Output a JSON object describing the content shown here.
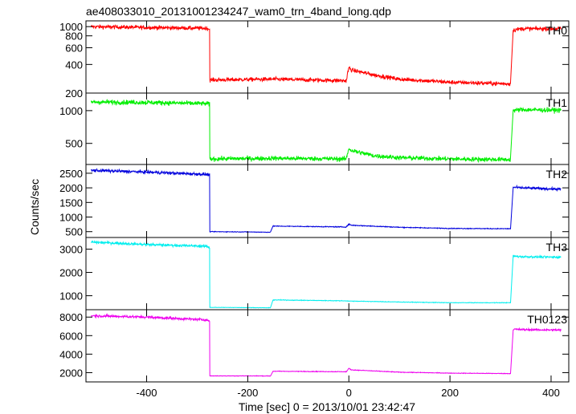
{
  "chart_data": {
    "type": "line",
    "title": "ae408033010_20131001234247_wam0_trn_4band_long.qdp",
    "xlabel": "Time [sec] 0 = 2013/10/01 23:42:47",
    "ylabel": "Counts/sec",
    "xlim": [
      -520,
      435
    ],
    "xticks": [
      -400,
      -200,
      0,
      200,
      400
    ],
    "panels": [
      {
        "name": "TH0",
        "color": "#ff0000",
        "scale": "log",
        "ylim": [
          200,
          1150
        ],
        "yticks": [
          200,
          400,
          600,
          800,
          1000
        ],
        "segments": [
          {
            "x": [
              -510,
              -400,
              -280,
              -275
            ],
            "y": [
              1000,
              980,
              960,
              940
            ]
          },
          {
            "x": [
              -275,
              -150,
              -5,
              0,
              5,
              50,
              100,
              200,
              320
            ],
            "y": [
              275,
              280,
              270,
              370,
              350,
              310,
              280,
              260,
              250
            ]
          },
          {
            "x": [
              325,
              340,
              420
            ],
            "y": [
              920,
              950,
              950
            ]
          }
        ],
        "noise": 0.035
      },
      {
        "name": "TH1",
        "color": "#00ee00",
        "scale": "log",
        "ylim": [
          320,
          1450
        ],
        "yticks": [
          500,
          1000
        ],
        "segments": [
          {
            "x": [
              -510,
              -400,
              -280,
              -275
            ],
            "y": [
              1200,
              1190,
              1160,
              1140
            ]
          },
          {
            "x": [
              -275,
              -150,
              -5,
              0,
              5,
              50,
              100,
              200,
              320
            ],
            "y": [
              360,
              365,
              360,
              450,
              430,
              385,
              370,
              360,
              355
            ]
          },
          {
            "x": [
              325,
              340,
              420
            ],
            "y": [
              1000,
              1020,
              1010
            ]
          }
        ],
        "noise": 0.035
      },
      {
        "name": "TH2",
        "color": "#0000dd",
        "scale": "linear",
        "ylim": [
          300,
          2800
        ],
        "yticks": [
          500,
          1000,
          1500,
          2000,
          2500
        ],
        "segments": [
          {
            "x": [
              -510,
              -400,
              -280,
              -275
            ],
            "y": [
              2600,
              2540,
              2460,
              2420
            ]
          },
          {
            "x": [
              -275,
              -200,
              -155
            ],
            "y": [
              500,
              490,
              480
            ]
          },
          {
            "x": [
              -150,
              -5,
              0,
              5,
              100,
              200,
              320
            ],
            "y": [
              690,
              660,
              760,
              720,
              650,
              610,
              600
            ]
          },
          {
            "x": [
              325,
              340,
              420
            ],
            "y": [
              2020,
              2000,
              1950
            ]
          }
        ],
        "noise": 0.015
      },
      {
        "name": "TH3",
        "color": "#00eeee",
        "scale": "linear",
        "ylim": [
          400,
          3500
        ],
        "yticks": [
          1000,
          2000,
          3000
        ],
        "segments": [
          {
            "x": [
              -510,
              -400,
              -280,
              -275
            ],
            "y": [
              3300,
              3200,
              3120,
              3050
            ]
          },
          {
            "x": [
              -275,
              -200,
              -155
            ],
            "y": [
              500,
              490,
              480
            ]
          },
          {
            "x": [
              -150,
              -5,
              0,
              5,
              100,
              200,
              320
            ],
            "y": [
              820,
              780,
              770,
              770,
              730,
              700,
              700
            ]
          },
          {
            "x": [
              325,
              340,
              420
            ],
            "y": [
              2700,
              2680,
              2650
            ]
          }
        ],
        "noise": 0.012
      },
      {
        "name": "TH0123",
        "color": "#ee00ee",
        "scale": "linear",
        "ylim": [
          1000,
          8800
        ],
        "yticks": [
          2000,
          4000,
          6000,
          8000
        ],
        "segments": [
          {
            "x": [
              -510,
              -400,
              -280,
              -275
            ],
            "y": [
              8150,
              8000,
              7700,
              7500
            ]
          },
          {
            "x": [
              -275,
              -200,
              -155
            ],
            "y": [
              1650,
              1650,
              1640
            ]
          },
          {
            "x": [
              -150,
              -5,
              0,
              5,
              100,
              200,
              320
            ],
            "y": [
              2150,
              2100,
              2450,
              2300,
              2050,
              1950,
              1900
            ]
          },
          {
            "x": [
              325,
              340,
              420
            ],
            "y": [
              6700,
              6650,
              6600
            ]
          }
        ],
        "noise": 0.012
      }
    ]
  }
}
